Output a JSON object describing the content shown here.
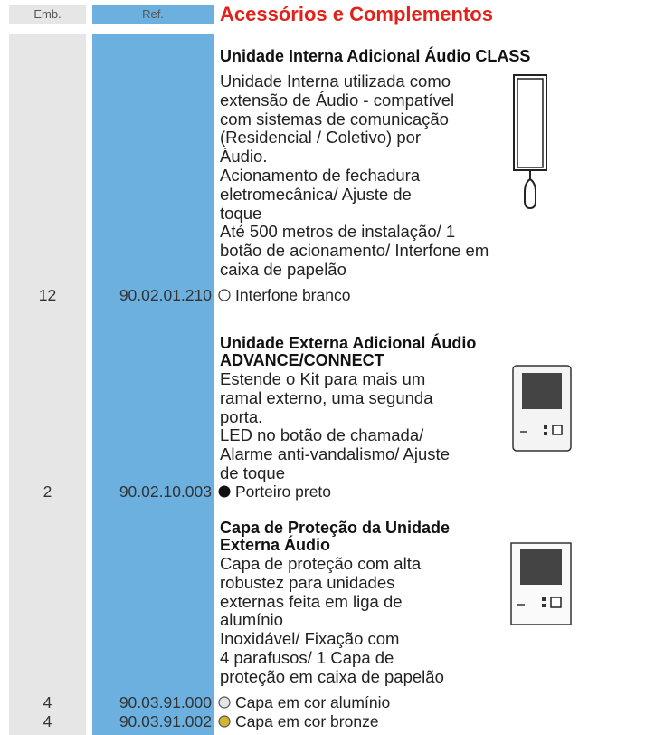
{
  "header": {
    "emb": "Emb.",
    "ref": "Ref.",
    "title": "Acessórios e Complementos"
  },
  "sections": [
    {
      "title": [
        "Unidade Interna Adicional Áudio CLASS"
      ],
      "description": [
        "Unidade Interna utilizada como",
        "extensão de Áudio - compatível",
        "com sistemas de comunicação",
        "(Residencial / Coletivo) por",
        "Áudio.",
        "Acionamento de fechadura",
        "eletromecânica/ Ajuste de",
        "toque",
        "Até 500 metros de instalação/ 1",
        "botão de acionamento/ Interfone em",
        "caixa de papelão"
      ],
      "items": [
        {
          "emb": "12",
          "ref": "90.02.01.210",
          "label": "Interfone branco"
        }
      ]
    },
    {
      "title": [
        "Unidade Externa Adicional Áudio",
        "ADVANCE/CONNECT"
      ],
      "description": [
        "Estende o Kit para mais um",
        "ramal externo, uma segunda",
        "porta.",
        "LED no botão de chamada/",
        "Alarme anti-vandalismo/ Ajuste",
        "de toque"
      ],
      "items": [
        {
          "emb": "2",
          "ref": "90.02.10.003",
          "label": "Porteiro preto"
        }
      ]
    },
    {
      "title": [
        "Capa de Proteção da Unidade",
        "Externa Áudio"
      ],
      "description": [
        "Capa de proteção com alta",
        "robustez para unidades",
        "externas feita em liga de",
        "alumínio",
        "Inoxidável/ Fixação com",
        "4 parafusos/ 1 Capa de",
        "proteção em caixa de papelão"
      ],
      "items": [
        {
          "emb": "4",
          "ref": "90.03.91.000",
          "label": "Capa em cor alumínio"
        },
        {
          "emb": "4",
          "ref": "90.03.91.002",
          "label": "Capa em cor bronze"
        }
      ]
    }
  ]
}
